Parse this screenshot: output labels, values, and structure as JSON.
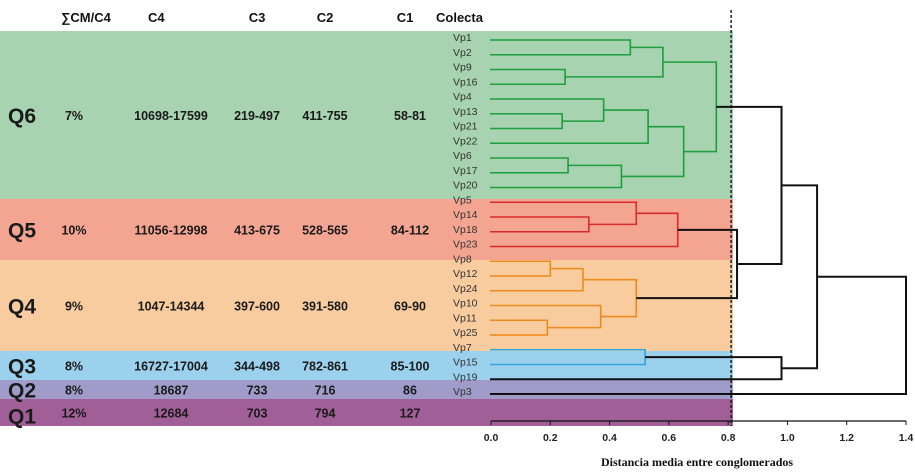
{
  "chart_data": {
    "type": "dendrogram",
    "xlabel": "Distancia media entre conglomerados",
    "xlim": [
      0,
      1.4
    ],
    "ticks": [
      "0.0",
      "0.2",
      "0.4",
      "0.6",
      "0.8",
      "1.0",
      "1.2",
      "1.4"
    ],
    "cut_line": 0.81,
    "columns": [
      "∑CM/C4",
      "C4",
      "C3",
      "C2",
      "C1",
      "Colecta"
    ],
    "groups": [
      {
        "name": "Q6",
        "cm_c4": "7%",
        "c4": "10698-17599",
        "c3": "219-497",
        "c2": "411-755",
        "c1": "58-81",
        "color": "#1e9e3c",
        "bg": "#a7d3b0",
        "leaves": [
          "Vp1",
          "Vp2",
          "Vp9",
          "Vp16",
          "Vp4",
          "Vp13",
          "Vp21",
          "Vp22",
          "Vp6",
          "Vp17",
          "Vp20"
        ]
      },
      {
        "name": "Q5",
        "cm_c4": "10%",
        "c4": "11056-12998",
        "c3": "413-675",
        "c2": "528-565",
        "c1": "84-112",
        "color": "#d92b2b",
        "bg": "#f4a592",
        "leaves": [
          "Vp5",
          "Vp14",
          "Vp18",
          "Vp23"
        ]
      },
      {
        "name": "Q4",
        "cm_c4": "9%",
        "c4": "1047-14344",
        "c3": "397-600",
        "c2": "391-580",
        "c1": "69-90",
        "color": "#ee8a1c",
        "bg": "#f8cc9f",
        "leaves": [
          "Vp8",
          "Vp12",
          "Vp24",
          "Vp10",
          "Vp11",
          "Vp25"
        ]
      },
      {
        "name": "Q3",
        "cm_c4": "8%",
        "c4": "16727-17004",
        "c3": "344-498",
        "c2": "782-861",
        "c1": "85-100",
        "color": "#2ea6e0",
        "bg": "#9cd1ee",
        "leaves": [
          "Vp7",
          "Vp15"
        ]
      },
      {
        "name": "Q2",
        "cm_c4": "8%",
        "c4": "18687",
        "c3": "733",
        "c2": "716",
        "c1": "86",
        "color": "#3d3d9a",
        "bg": "#a19bc9",
        "leaves": [
          "Vp19"
        ]
      },
      {
        "name": "Q1",
        "cm_c4": "12%",
        "c4": "12684",
        "c3": "703",
        "c2": "794",
        "c1": "127",
        "color": "#3a1030",
        "bg": "#a15f98",
        "leaves": [
          "Vp3"
        ]
      }
    ],
    "merges": [
      {
        "a": "Vp1",
        "b": "Vp2",
        "h": 0.47,
        "color": "#1e9e3c"
      },
      {
        "a": "Vp9",
        "b": "Vp16",
        "h": 0.25,
        "color": "#1e9e3c"
      },
      {
        "a": 0,
        "b": 1,
        "h": 0.58,
        "color": "#1e9e3c"
      },
      {
        "a": "Vp13",
        "b": "Vp21",
        "h": 0.24,
        "color": "#1e9e3c"
      },
      {
        "a": "Vp4",
        "b": 3,
        "h": 0.38,
        "color": "#1e9e3c"
      },
      {
        "a": 4,
        "b": "Vp22",
        "h": 0.53,
        "color": "#1e9e3c"
      },
      {
        "a": "Vp6",
        "b": "Vp17",
        "h": 0.26,
        "color": "#1e9e3c"
      },
      {
        "a": 6,
        "b": "Vp20",
        "h": 0.44,
        "color": "#1e9e3c"
      },
      {
        "a": 5,
        "b": 7,
        "h": 0.65,
        "color": "#1e9e3c"
      },
      {
        "a": 2,
        "b": 8,
        "h": 0.76,
        "color": "#1e9e3c"
      },
      {
        "a": "Vp14",
        "b": "Vp18",
        "h": 0.33,
        "color": "#d92b2b"
      },
      {
        "a": "Vp5",
        "b": 10,
        "h": 0.49,
        "color": "#d92b2b"
      },
      {
        "a": 11,
        "b": "Vp23",
        "h": 0.63,
        "color": "#d92b2b"
      },
      {
        "a": "Vp8",
        "b": "Vp12",
        "h": 0.2,
        "color": "#ee8a1c"
      },
      {
        "a": 13,
        "b": "Vp24",
        "h": 0.31,
        "color": "#ee8a1c"
      },
      {
        "a": "Vp11",
        "b": "Vp25",
        "h": 0.19,
        "color": "#ee8a1c"
      },
      {
        "a": "Vp10",
        "b": 15,
        "h": 0.37,
        "color": "#ee8a1c"
      },
      {
        "a": 14,
        "b": 16,
        "h": 0.49,
        "color": "#ee8a1c"
      },
      {
        "a": 12,
        "b": 17,
        "h": 0.83,
        "color": "#111111"
      },
      {
        "a": 9,
        "b": 18,
        "h": 0.98,
        "color": "#111111"
      },
      {
        "a": "Vp7",
        "b": "Vp15",
        "h": 0.52,
        "color": "#2ea6e0"
      },
      {
        "a": 20,
        "b": "Vp19",
        "h": 0.98,
        "color": "#111111"
      },
      {
        "a": 19,
        "b": 21,
        "h": 1.1,
        "color": "#111111"
      },
      {
        "a": 22,
        "b": "Vp3",
        "h": 1.4,
        "color": "#111111"
      }
    ]
  }
}
